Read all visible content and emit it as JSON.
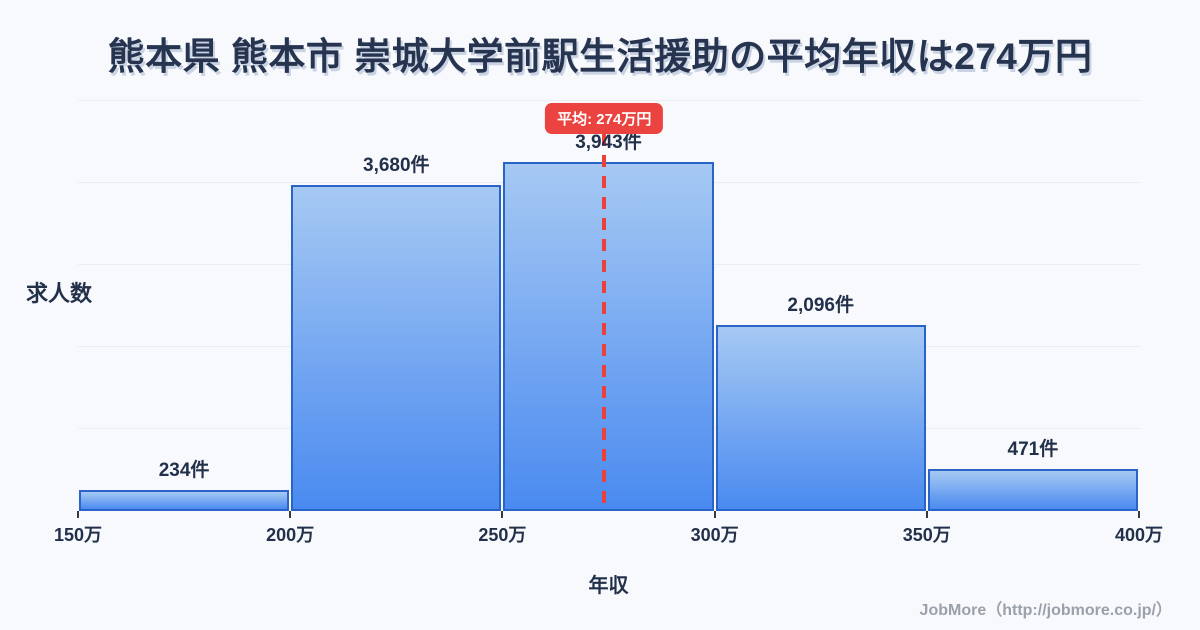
{
  "title": {
    "text": "熊本県 熊本市 崇城大学前駅生活援助の平均年収は274万円"
  },
  "chart_data": {
    "type": "bar",
    "subtype": "histogram",
    "title": "熊本県 熊本市 崇城大学前駅生活援助の平均年収は274万円",
    "xlabel": "年収",
    "ylabel": "求人数",
    "x_ticks": [
      "150万",
      "200万",
      "250万",
      "300万",
      "350万",
      "400万"
    ],
    "x_range_man_yen": [
      150,
      400
    ],
    "bins": [
      {
        "from": "150万",
        "to": "200万",
        "count": 234,
        "label": "234件"
      },
      {
        "from": "200万",
        "to": "250万",
        "count": 3680,
        "label": "3,680件"
      },
      {
        "from": "250万",
        "to": "300万",
        "count": 3943,
        "label": "3,943件"
      },
      {
        "from": "300万",
        "to": "350万",
        "count": 2096,
        "label": "2,096件"
      },
      {
        "from": "350万",
        "to": "400万",
        "count": 471,
        "label": "471件"
      }
    ],
    "mean": {
      "value_man_yen": 274,
      "label": "平均: 274万円"
    },
    "grid": true,
    "gridline_count": 5,
    "legend": false,
    "colors": {
      "background": "#f8f9fc",
      "bar_fill_top": "#a6c9f3",
      "bar_fill_bottom": "#4a8af0",
      "bar_border": "#2a64c8",
      "mean_line": "#ee403b",
      "badge_bg": "#ea4340",
      "badge_text": "#ffffff",
      "text": "#22304a",
      "grid_line": "#e9edf4",
      "footer_text": "#9aa1ab"
    }
  },
  "footer": {
    "text": "JobMore（http://jobmore.co.jp/）"
  }
}
